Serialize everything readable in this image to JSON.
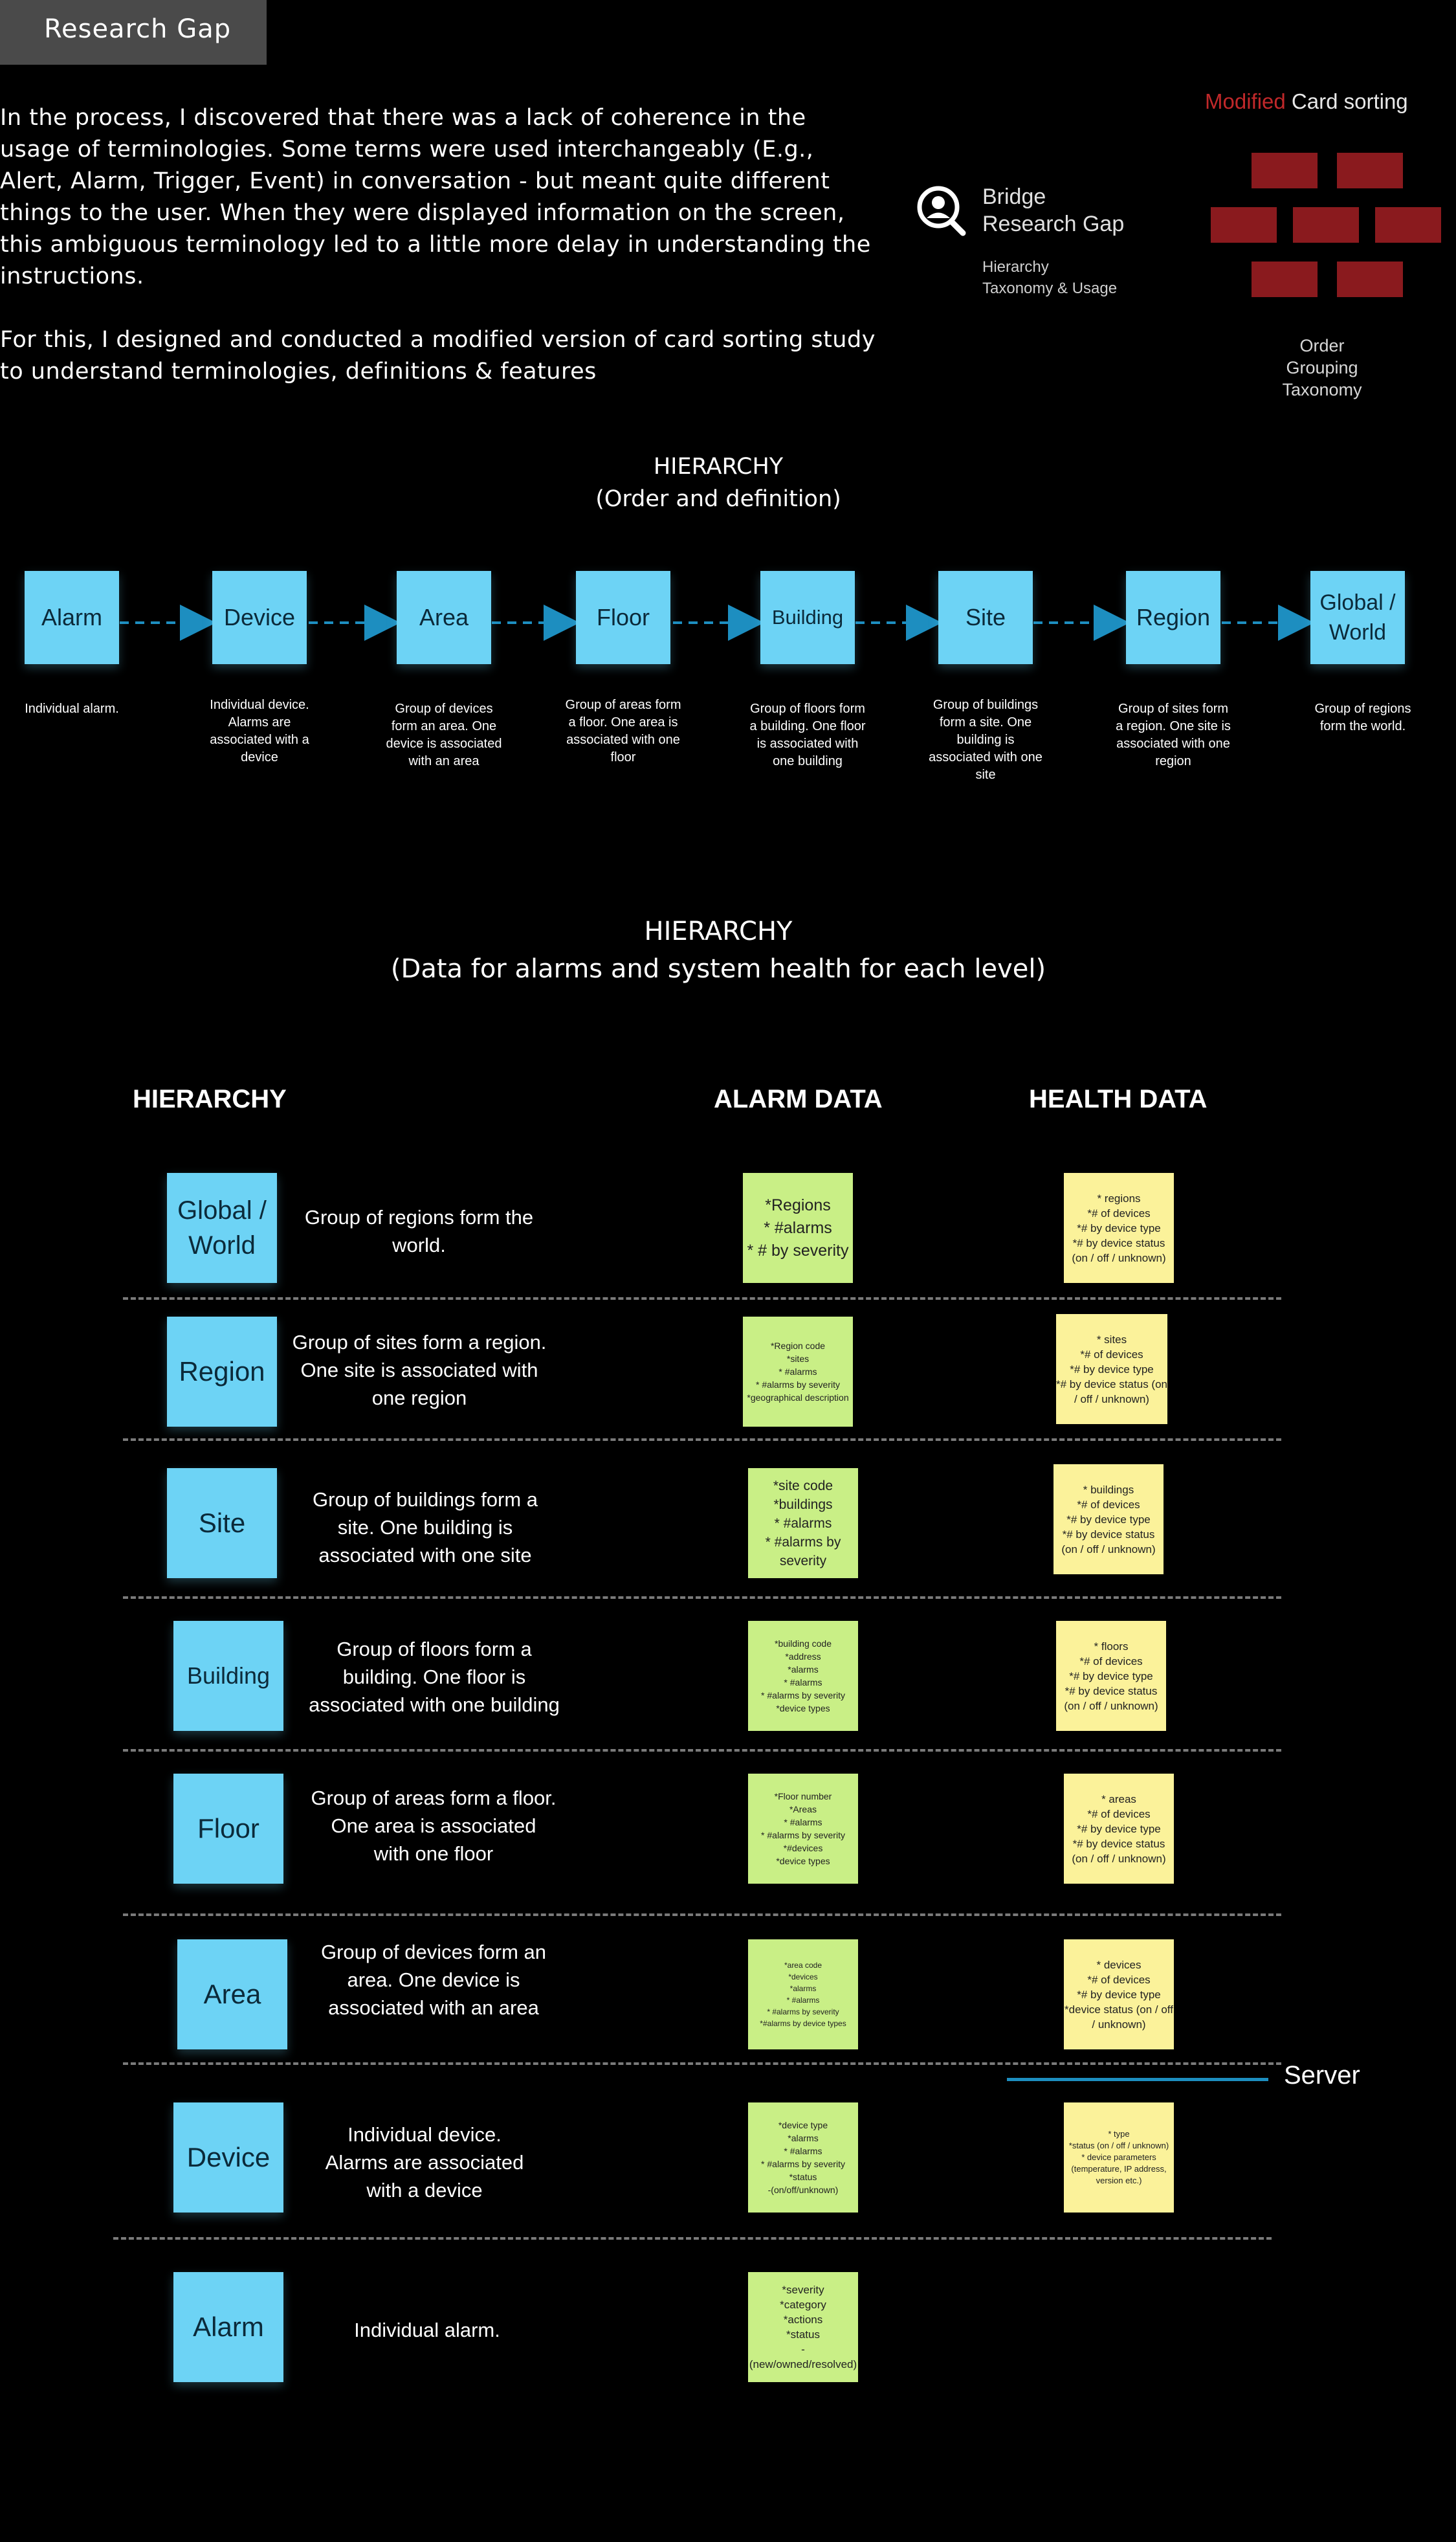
{
  "header": {
    "title": "Research Gap"
  },
  "intro": {
    "paragraph1": "In the process, I discovered that there was a lack of coherence in the usage of terminologies. Some terms were used interchangeably (E.g., Alert, Alarm, Trigger, Event) in conversation - but meant quite different things to the user. When they were displayed information on the screen, this ambiguous terminology led to a little more delay in understanding the instructions.",
    "paragraph2": "For this, I designed and conducted a modified version of card sorting study to understand terminologies, definitions & features"
  },
  "bridge": {
    "icon": "magnifier-person-icon",
    "title_line1": "Bridge",
    "title_line2": "Research Gap",
    "sub_line1": "Hierarchy",
    "sub_line2": "Taxonomy & Usage"
  },
  "card_sorting": {
    "title_modified": "Modified",
    "title_rest": " Card sorting",
    "caption_line1": "Order",
    "caption_line2": "Grouping",
    "caption_line3": "Taxonomy",
    "accent_color": "#c0282a",
    "card_color": "#8a1a1e"
  },
  "hierarchy1": {
    "title_line1": "HIERARCHY",
    "title_line2": "(Order and definition)",
    "levels": [
      {
        "label": "Alarm",
        "desc": "Individual alarm."
      },
      {
        "label": "Device",
        "desc": "Individual device. Alarms are associated with a device"
      },
      {
        "label": "Area",
        "desc": "Group of devices form an area. One device is associated with an area"
      },
      {
        "label": "Floor",
        "desc": "Group of areas form a floor. One area is associated with one floor"
      },
      {
        "label": "Building",
        "desc": "Group of floors form a building. One floor is associated with one building"
      },
      {
        "label": "Site",
        "desc": "Group of buildings form a site. One building is associated with one site"
      },
      {
        "label": "Region",
        "desc": "Group of sites form a region. One site is associated with one region"
      },
      {
        "label": "Global / World",
        "desc": "Group of regions form the world."
      }
    ]
  },
  "hierarchy2": {
    "title_line1": "HIERARCHY",
    "title_line2": "(Data for alarms and system health for each level)",
    "col_hierarchy": "HIERARCHY",
    "col_alarm": "ALARM DATA",
    "col_health": "HEALTH DATA",
    "rows": [
      {
        "label": "Global / World",
        "desc": "Group of regions form the world.",
        "alarm": "*Regions\n* #alarms\n* # by severity",
        "health": "* regions\n*# of devices\n*# by device type\n*# by device status (on / off / unknown)"
      },
      {
        "label": "Region",
        "desc": "Group of sites form a region. One site is associated with one region",
        "alarm": "*Region code\n*sites\n* #alarms\n* #alarms by severity\n*geographical description",
        "health": "* sites\n*# of devices\n*# by device type\n*# by device status (on / off / unknown)"
      },
      {
        "label": "Site",
        "desc": "Group of buildings form a site. One building is associated with one site",
        "alarm": "*site code\n*buildings\n* #alarms\n* #alarms by severity",
        "health": "* buildings\n*# of devices\n*# by device type\n*# by device status (on / off / unknown)"
      },
      {
        "label": "Building",
        "desc": "Group of floors form a building. One floor is associated with one building",
        "alarm": "*building code\n*address\n*alarms\n* #alarms\n* #alarms by severity\n*device types",
        "health": "* floors\n*# of devices\n*# by device type\n*# by device status (on / off / unknown)"
      },
      {
        "label": "Floor",
        "desc": "Group of areas form a floor. One area is associated with one floor",
        "alarm": "*Floor number\n*Areas\n* #alarms\n* #alarms by severity\n*#devices\n*device types",
        "health": "* areas\n*# of devices\n*# by device type\n*# by device status (on / off / unknown)"
      },
      {
        "label": "Area",
        "desc": "Group of devices form an area. One device is associated with an area",
        "alarm": "*area code\n*devices\n*alarms\n* #alarms\n* #alarms by severity\n*#alarms by device types",
        "health": "* devices\n*# of devices\n*# by device type\n*device status (on / off / unknown)"
      },
      {
        "label": "Device",
        "desc": "Individual device. Alarms are associated with a device",
        "alarm": "*device type\n*alarms\n* #alarms\n* #alarms by severity\n*status\n-(on/off/unknown)",
        "health": "* type\n*status (on / off / unknown)\n* device parameters (temperature, IP address, version etc.)"
      },
      {
        "label": "Alarm",
        "desc": "Individual alarm.",
        "alarm": "*severity\n*category\n*actions\n*status\n-(new/owned/resolved)",
        "health": ""
      }
    ],
    "server_label": "Server"
  },
  "colors": {
    "sticky_blue": "#6dd3f5",
    "sticky_green": "#c9ef86",
    "sticky_yellow": "#fbf29a",
    "arrow": "#1d8ec0",
    "server_line": "#1d8ec0"
  }
}
